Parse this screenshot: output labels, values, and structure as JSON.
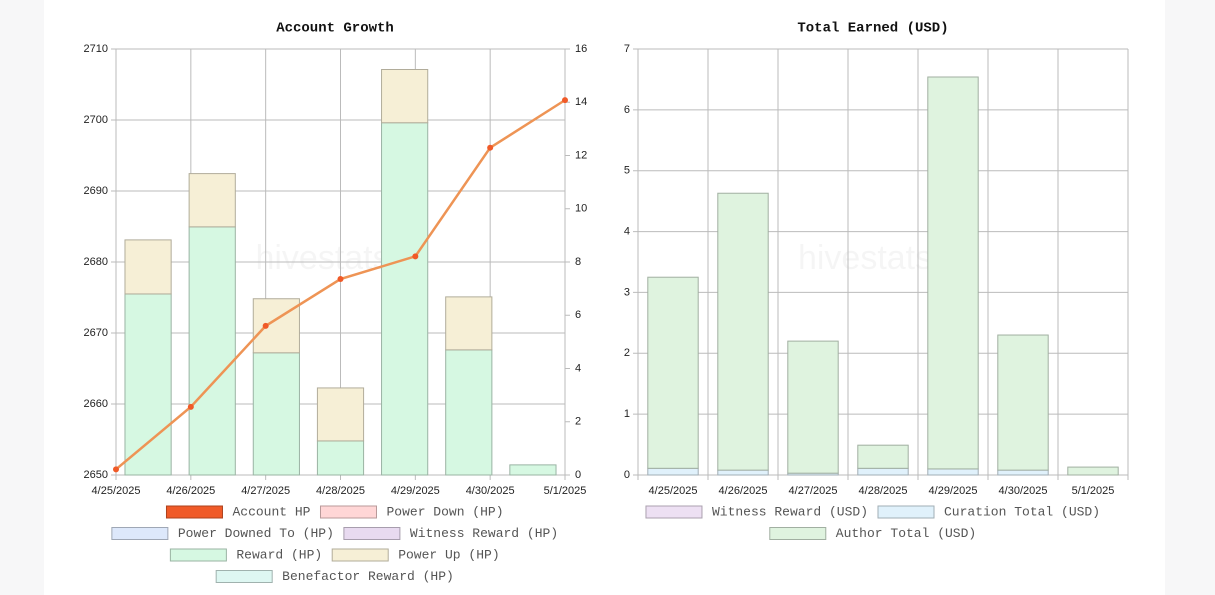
{
  "chart_data": [
    {
      "type": "combo",
      "title": "Account Growth",
      "watermark": "hivestats.io",
      "categories": [
        "4/25/2025",
        "4/26/2025",
        "4/27/2025",
        "4/28/2025",
        "4/29/2025",
        "4/30/2025",
        "5/1/2025"
      ],
      "ylim": [
        2650,
        2710
      ],
      "yticks": [
        2650,
        2660,
        2670,
        2680,
        2690,
        2700,
        2710
      ],
      "y2lim": [
        0,
        16
      ],
      "y2ticks": [
        0,
        2,
        4,
        6,
        8,
        10,
        12,
        14,
        16
      ],
      "grid": true,
      "series": [
        {
          "name": "Account HP",
          "type": "line",
          "axis": "y",
          "color": "#f05a28",
          "values": [
            2650.8,
            2659.6,
            2671,
            2677.6,
            2680.8,
            2696.1,
            2702.8
          ]
        },
        {
          "name": "Power Down (HP)",
          "type": "bar",
          "axis": "y2",
          "color": "#ffd6d6",
          "values": [
            0,
            0,
            0,
            0,
            0,
            0,
            0
          ]
        },
        {
          "name": "Power Downed To (HP)",
          "type": "bar",
          "axis": "y2",
          "color": "#dde8fb",
          "values": [
            0,
            0,
            0,
            0,
            0,
            0,
            0
          ]
        },
        {
          "name": "Witness Reward (HP)",
          "type": "bar",
          "axis": "y2",
          "color": "#e8daf0",
          "values": [
            0,
            0,
            0,
            0,
            0,
            0,
            0
          ]
        },
        {
          "name": "Reward (HP)",
          "type": "bar",
          "axis": "y2",
          "color": "#d6f8e2",
          "values": [
            6.8,
            9.32,
            4.59,
            1.28,
            13.23,
            4.7,
            0.38
          ]
        },
        {
          "name": "Power Up (HP)",
          "type": "bar",
          "axis": "y2",
          "color": "#f6efd6",
          "values": [
            2.03,
            2.0,
            2.03,
            1.99,
            2.0,
            1.99,
            0
          ]
        },
        {
          "name": "Benefactor Reward (HP)",
          "type": "bar",
          "axis": "y2",
          "color": "#def7f2",
          "values": [
            0,
            0,
            0,
            0,
            0,
            0,
            0
          ]
        }
      ]
    },
    {
      "type": "stacked_bar",
      "title": "Total Earned (USD)",
      "watermark": "hivestats.io",
      "categories": [
        "4/25/2025",
        "4/26/2025",
        "4/27/2025",
        "4/28/2025",
        "4/29/2025",
        "4/30/2025",
        "5/1/2025"
      ],
      "ylim": [
        0,
        7
      ],
      "yticks": [
        0,
        1,
        2,
        3,
        4,
        5,
        6,
        7
      ],
      "grid": true,
      "series": [
        {
          "name": "Witness Reward (USD)",
          "color": "#ede0f3",
          "values": [
            0,
            0,
            0,
            0,
            0,
            0,
            0
          ]
        },
        {
          "name": "Curation Total (USD)",
          "color": "#e0f1fb",
          "values": [
            0.11,
            0.08,
            0.03,
            0.11,
            0.1,
            0.08,
            0
          ]
        },
        {
          "name": "Author Total (USD)",
          "color": "#dff3df",
          "values": [
            3.14,
            4.55,
            2.17,
            0.38,
            6.44,
            2.22,
            0.13
          ]
        }
      ]
    }
  ]
}
